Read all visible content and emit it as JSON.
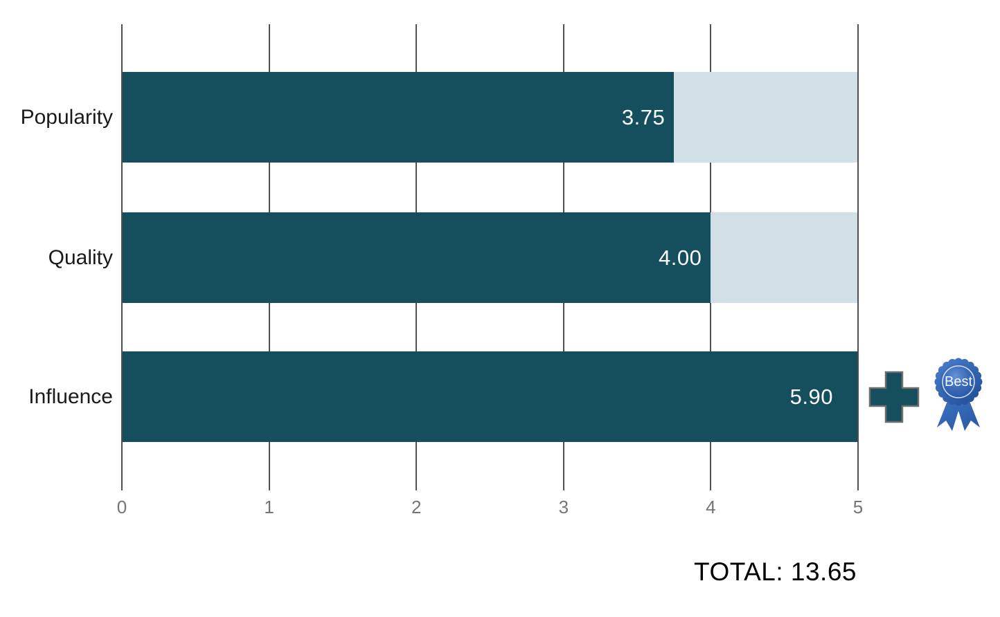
{
  "chart_data": {
    "type": "bar",
    "orientation": "horizontal",
    "title": "",
    "xlabel": "",
    "ylabel": "",
    "categories": [
      "Popularity",
      "Quality",
      "Influence"
    ],
    "values": [
      3.75,
      4.0,
      5.9
    ],
    "value_labels": [
      "3.75",
      "4.00",
      "5.90"
    ],
    "x_ticks": [
      "0",
      "1",
      "2",
      "3",
      "4",
      "5"
    ],
    "xlim": [
      0,
      5
    ],
    "bar_display_cap": 5,
    "grid": true,
    "legend": false,
    "total_label": "TOTAL: 13.65",
    "colors": {
      "bar_fill": "#154f5e",
      "bar_track": "#d2dfe4",
      "gridline": "#4f4f4f",
      "tick_label": "#757575",
      "category_label": "#1a1a1a",
      "value_label": "#ffffff",
      "total_label": "#000000"
    }
  },
  "icons": [
    {
      "name": "plus-icon",
      "color": "#154f5e",
      "outline": "#6e6e6e"
    },
    {
      "name": "award-ribbon-icon",
      "label": "Best",
      "color": "#2c5fa8"
    }
  ]
}
